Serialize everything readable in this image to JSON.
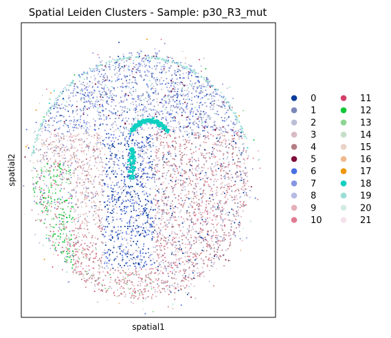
{
  "chart_data": {
    "type": "scatter",
    "title": "Spatial Leiden Clusters - Sample: p30_R3_mut",
    "xlabel": "spatial1",
    "ylabel": "spatial2",
    "grid": false,
    "ticks": false,
    "legend_placement": "right",
    "legend_columns": 2,
    "series": [
      {
        "name": "0",
        "color": "#0b3d9c"
      },
      {
        "name": "1",
        "color": "#7d87b9"
      },
      {
        "name": "2",
        "color": "#bbbfd8"
      },
      {
        "name": "3",
        "color": "#d9bac6"
      },
      {
        "name": "4",
        "color": "#b57e86"
      },
      {
        "name": "5",
        "color": "#7e0d3c"
      },
      {
        "name": "6",
        "color": "#4a6fe3"
      },
      {
        "name": "7",
        "color": "#8595e1"
      },
      {
        "name": "8",
        "color": "#b5bbe3"
      },
      {
        "name": "9",
        "color": "#e6afb9"
      },
      {
        "name": "10",
        "color": "#e07b91"
      },
      {
        "name": "11",
        "color": "#d33f6a"
      },
      {
        "name": "12",
        "color": "#11c638"
      },
      {
        "name": "13",
        "color": "#8dd593"
      },
      {
        "name": "14",
        "color": "#c6dec7"
      },
      {
        "name": "15",
        "color": "#ead3c6"
      },
      {
        "name": "16",
        "color": "#f0b98d"
      },
      {
        "name": "17",
        "color": "#ef9708"
      },
      {
        "name": "18",
        "color": "#0fcfc0"
      },
      {
        "name": "19",
        "color": "#9cded6"
      },
      {
        "name": "20",
        "color": "#d5eae7"
      },
      {
        "name": "21",
        "color": "#f3e1eb"
      }
    ]
  }
}
